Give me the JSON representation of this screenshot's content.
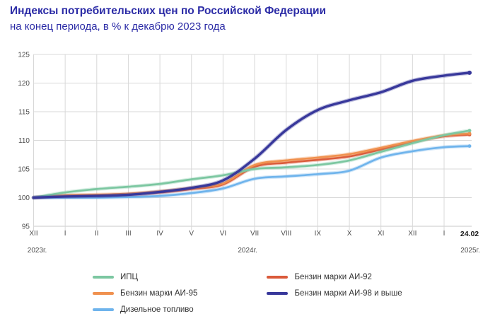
{
  "header": {
    "title": "Индексы потребительских цен по Российской Федерации",
    "subtitle": "на конец периода, в % к декабрю 2023 года"
  },
  "colors": {
    "ipc": "#7cc7a1",
    "ai95": "#f0914f",
    "diesel": "#6fb4ec",
    "ai92": "#da5a3a",
    "ai98": "#38389b",
    "title_text": "#2b2ba6",
    "grid": "#d8d8d8",
    "axis_text": "#4d4d4d",
    "end_label_text": "#1a1a1a"
  },
  "chart_data": {
    "type": "line",
    "title": "Индексы потребительских цен по Российской Федерации",
    "subtitle": "на конец периода, в % к декабрю 2023 года",
    "ylim": [
      95,
      125
    ],
    "yticks": [
      95,
      100,
      105,
      110,
      115,
      120,
      125
    ],
    "grid": "on",
    "legend_position": "bottom",
    "categories": [
      "XII",
      "I",
      "II",
      "III",
      "IV",
      "V",
      "VI",
      "VII",
      "VIII",
      "IX",
      "X",
      "XI",
      "XII",
      "I",
      "24.02"
    ],
    "end_label": "24.02",
    "year_labels": [
      "2023г.",
      "2024г.",
      "2025г."
    ],
    "series": [
      {
        "name": "Бензин марки АИ-92",
        "color_key": "ai92",
        "values": [
          100,
          100.3,
          100.4,
          100.5,
          100.9,
          101.5,
          102.3,
          105.4,
          106.1,
          106.6,
          107.2,
          108.4,
          109.7,
          110.7,
          111.0
        ]
      },
      {
        "name": "Бензин марки АИ-95",
        "color_key": "ai95",
        "values": [
          100,
          100.4,
          100.5,
          100.7,
          101.1,
          101.7,
          102.5,
          105.7,
          106.5,
          107.0,
          107.6,
          108.7,
          109.9,
          110.9,
          111.2
        ]
      },
      {
        "name": "ИПЦ",
        "color_key": "ipc",
        "values": [
          100,
          100.9,
          101.5,
          101.9,
          102.4,
          103.2,
          103.9,
          105.0,
          105.3,
          105.7,
          106.5,
          108.0,
          109.5,
          110.9,
          111.7
        ]
      },
      {
        "name": "Дизельное топливо",
        "color_key": "diesel",
        "values": [
          100,
          100.0,
          100.0,
          100.1,
          100.3,
          100.8,
          101.6,
          103.3,
          103.7,
          104.1,
          104.7,
          107.0,
          108.1,
          108.8,
          109.0
        ]
      },
      {
        "name": "Бензин марки АИ-98 и выше",
        "color_key": "ai98",
        "values": [
          100,
          100.2,
          100.3,
          100.5,
          101.0,
          101.7,
          103.0,
          106.8,
          111.8,
          115.3,
          117.0,
          118.4,
          120.4,
          121.3,
          121.8
        ]
      }
    ],
    "legend": {
      "columns": [
        [
          {
            "label": "ИПЦ",
            "color_key": "ipc"
          },
          {
            "label": "Бензин марки АИ-95",
            "color_key": "ai95"
          },
          {
            "label": "Дизельное топливо",
            "color_key": "diesel"
          }
        ],
        [
          {
            "label": "Бензин марки АИ-92",
            "color_key": "ai92"
          },
          {
            "label": "Бензин марки АИ-98 и выше",
            "color_key": "ai98"
          }
        ]
      ]
    }
  }
}
